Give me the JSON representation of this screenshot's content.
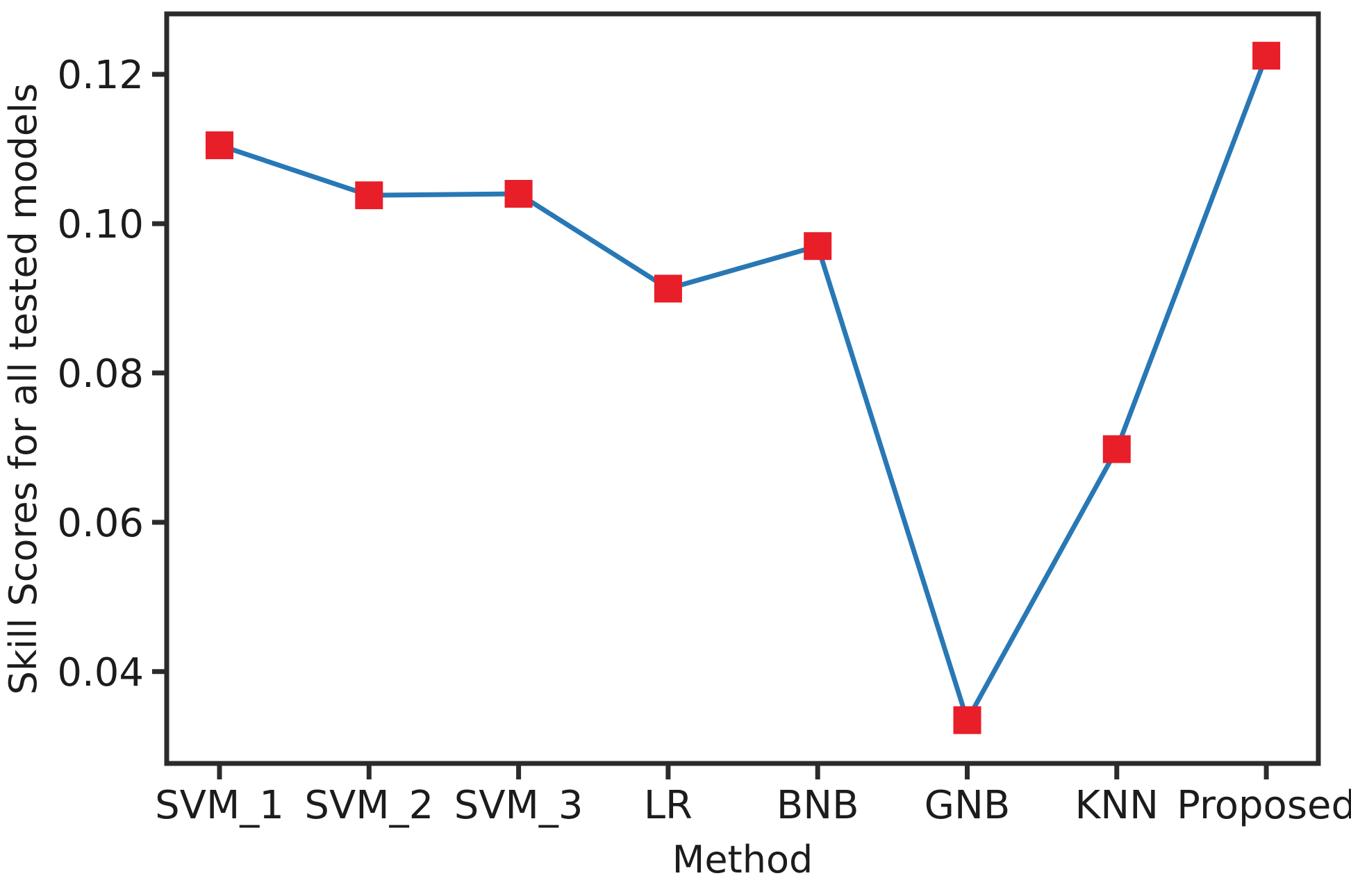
{
  "chart_data": {
    "type": "line",
    "title": "",
    "xlabel": "Method",
    "ylabel": "Skill Scores for all tested models",
    "categories": [
      "SVM_1",
      "SVM_2",
      "SVM_3",
      "LR",
      "BNB",
      "GNB",
      "KNN",
      "Proposed"
    ],
    "series": [
      {
        "name": "Skill Scores for all tested models",
        "values": [
          0.1105,
          0.1038,
          0.104,
          0.0913,
          0.097,
          0.0335,
          0.0698,
          0.1225
        ]
      }
    ],
    "ylim": [
      0.0277,
      0.1281
    ],
    "yticks": [
      0.04,
      0.06,
      0.08,
      0.1,
      0.12
    ],
    "ytick_labels": [
      "0.04",
      "0.06",
      "0.08",
      "0.10",
      "0.12"
    ],
    "grid": false,
    "legend_position": "none",
    "line_color": "#2878b5",
    "marker_shape": "square",
    "marker_color": "#e81e28",
    "spine_color": "#2b2b2b",
    "text_color": "#1c1c1c"
  }
}
